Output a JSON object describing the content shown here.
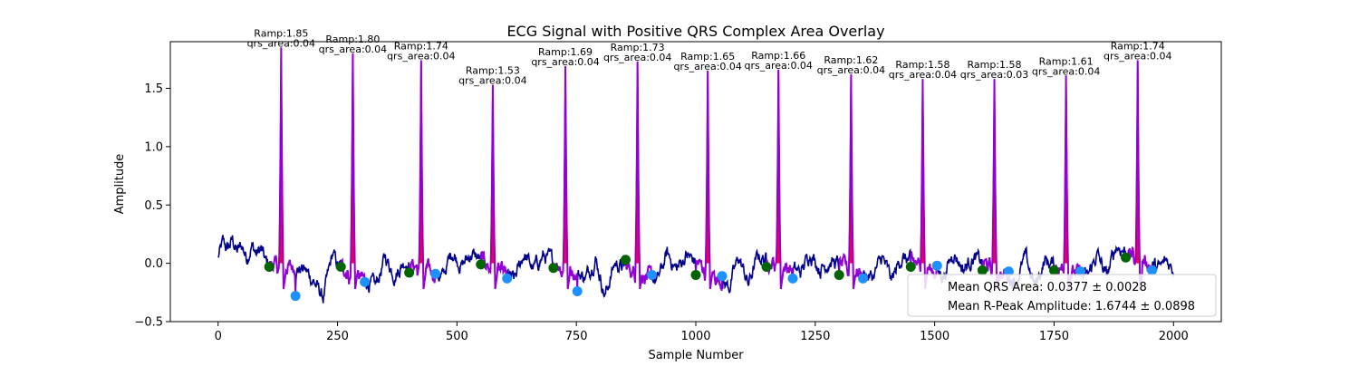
{
  "chart_data": {
    "type": "line",
    "title": "ECG Signal with Positive QRS Complex Area Overlay",
    "xlabel": "Sample Number",
    "ylabel": "Amplitude",
    "xlim": [
      -100,
      2100
    ],
    "ylim": [
      -0.5,
      1.9
    ],
    "xticks": [
      0,
      250,
      500,
      750,
      1000,
      1250,
      1500,
      1750,
      2000
    ],
    "xtick_labels": [
      "0",
      "250",
      "500",
      "750",
      "1000",
      "1250",
      "1500",
      "1750",
      "2000"
    ],
    "yticks": [
      -0.5,
      0.0,
      0.5,
      1.0,
      1.5
    ],
    "ytick_labels": [
      "−0.5",
      "0.0",
      "0.5",
      "1.0",
      "1.5"
    ],
    "grid": false,
    "legend_position": "lower-right",
    "legend": [
      "Mean QRS Area: 0.0377 ± 0.0028",
      "Mean R-Peak Amplitude: 1.6744 ± 0.0898"
    ],
    "colors": {
      "signal": "#00008b",
      "qrs_segment": "#9400d3",
      "area_fill": "#ff0033",
      "onset_marker": "#006400",
      "offset_marker": "#1e90ff"
    },
    "beats": [
      {
        "r_peak_x": 132,
        "r_amp": 1.85,
        "label_ramp": "Ramp:1.85",
        "label_area": "qrs_area:0.04",
        "onset_x": 107,
        "onset_y": -0.03,
        "offset_x": 162,
        "offset_y": -0.28
      },
      {
        "r_peak_x": 282,
        "r_amp": 1.8,
        "label_ramp": "Ramp:1.80",
        "label_area": "qrs_area:0.04",
        "onset_x": 257,
        "onset_y": -0.03,
        "offset_x": 307,
        "offset_y": -0.16
      },
      {
        "r_peak_x": 425,
        "r_amp": 1.74,
        "label_ramp": "Ramp:1.74",
        "label_area": "qrs_area:0.04",
        "onset_x": 400,
        "onset_y": -0.08,
        "offset_x": 455,
        "offset_y": -0.09
      },
      {
        "r_peak_x": 575,
        "r_amp": 1.53,
        "label_ramp": "Ramp:1.53",
        "label_area": "qrs_area:0.04",
        "onset_x": 550,
        "onset_y": -0.01,
        "offset_x": 605,
        "offset_y": -0.13
      },
      {
        "r_peak_x": 727,
        "r_amp": 1.69,
        "label_ramp": "Ramp:1.69",
        "label_area": "qrs_area:0.04",
        "onset_x": 702,
        "onset_y": -0.04,
        "offset_x": 752,
        "offset_y": -0.24
      },
      {
        "r_peak_x": 878,
        "r_amp": 1.73,
        "label_ramp": "Ramp:1.73",
        "label_area": "qrs_area:0.04",
        "onset_x": 853,
        "onset_y": 0.03,
        "offset_x": 908,
        "offset_y": -0.1
      },
      {
        "r_peak_x": 1025,
        "r_amp": 1.65,
        "label_ramp": "Ramp:1.65",
        "label_area": "qrs_area:0.04",
        "onset_x": 1000,
        "onset_y": -0.1,
        "offset_x": 1055,
        "offset_y": -0.11
      },
      {
        "r_peak_x": 1173,
        "r_amp": 1.66,
        "label_ramp": "Ramp:1.66",
        "label_area": "qrs_area:0.04",
        "onset_x": 1148,
        "onset_y": -0.03,
        "offset_x": 1203,
        "offset_y": -0.13
      },
      {
        "r_peak_x": 1325,
        "r_amp": 1.62,
        "label_ramp": "Ramp:1.62",
        "label_area": "qrs_area:0.04",
        "onset_x": 1300,
        "onset_y": -0.1,
        "offset_x": 1350,
        "offset_y": -0.13
      },
      {
        "r_peak_x": 1475,
        "r_amp": 1.58,
        "label_ramp": "Ramp:1.58",
        "label_area": "qrs_area:0.04",
        "onset_x": 1450,
        "onset_y": -0.03,
        "offset_x": 1505,
        "offset_y": -0.02
      },
      {
        "r_peak_x": 1625,
        "r_amp": 1.58,
        "label_ramp": "Ramp:1.58",
        "label_area": "qrs_area:0.03",
        "onset_x": 1600,
        "onset_y": -0.06,
        "offset_x": 1655,
        "offset_y": -0.07
      },
      {
        "r_peak_x": 1775,
        "r_amp": 1.61,
        "label_ramp": "Ramp:1.61",
        "label_area": "qrs_area:0.04",
        "onset_x": 1750,
        "onset_y": -0.06,
        "offset_x": 1805,
        "offset_y": -0.07
      },
      {
        "r_peak_x": 1925,
        "r_amp": 1.74,
        "label_ramp": "Ramp:1.74",
        "label_area": "qrs_area:0.04",
        "onset_x": 1900,
        "onset_y": 0.05,
        "offset_x": 1955,
        "offset_y": -0.06
      }
    ],
    "baseline": {
      "x_start": 0,
      "x_end": 2000,
      "start_y": 0.05,
      "approx_points": [
        [
          0,
          0.05
        ],
        [
          10,
          0.17
        ],
        [
          20,
          0.12
        ],
        [
          30,
          0.2
        ],
        [
          40,
          0.1
        ],
        [
          50,
          0.15
        ],
        [
          60,
          0.05
        ],
        [
          70,
          0.16
        ],
        [
          80,
          0.08
        ],
        [
          90,
          0.12
        ],
        [
          100,
          0.0
        ],
        [
          180,
          -0.05
        ],
        [
          200,
          -0.15
        ],
        [
          220,
          -0.3
        ],
        [
          240,
          0.08
        ],
        [
          250,
          -0.02
        ],
        [
          330,
          -0.2
        ],
        [
          350,
          0.05
        ],
        [
          370,
          -0.1
        ],
        [
          390,
          0.02
        ],
        [
          470,
          -0.12
        ],
        [
          490,
          0.1
        ],
        [
          510,
          -0.02
        ],
        [
          530,
          0.08
        ],
        [
          620,
          -0.15
        ],
        [
          640,
          0.08
        ],
        [
          660,
          -0.05
        ],
        [
          680,
          0.06
        ],
        [
          770,
          -0.12
        ],
        [
          790,
          0.05
        ],
        [
          810,
          -0.28
        ],
        [
          830,
          0.0
        ],
        [
          920,
          -0.15
        ],
        [
          940,
          0.08
        ],
        [
          960,
          -0.05
        ],
        [
          980,
          0.07
        ],
        [
          1070,
          -0.2
        ],
        [
          1090,
          0.05
        ],
        [
          1110,
          -0.18
        ],
        [
          1130,
          0.06
        ],
        [
          1220,
          -0.08
        ],
        [
          1240,
          0.1
        ],
        [
          1260,
          -0.05
        ],
        [
          1280,
          0.02
        ],
        [
          1370,
          -0.12
        ],
        [
          1390,
          0.05
        ],
        [
          1410,
          -0.15
        ],
        [
          1430,
          0.05
        ],
        [
          1520,
          -0.1
        ],
        [
          1540,
          0.1
        ],
        [
          1560,
          -0.05
        ],
        [
          1580,
          0.05
        ],
        [
          1670,
          -0.15
        ],
        [
          1690,
          0.05
        ],
        [
          1710,
          -0.2
        ],
        [
          1730,
          0.02
        ],
        [
          1820,
          -0.12
        ],
        [
          1840,
          0.08
        ],
        [
          1860,
          -0.12
        ],
        [
          1880,
          0.15
        ],
        [
          1970,
          -0.05
        ],
        [
          1985,
          0.02
        ],
        [
          2000,
          -0.05
        ]
      ]
    }
  }
}
